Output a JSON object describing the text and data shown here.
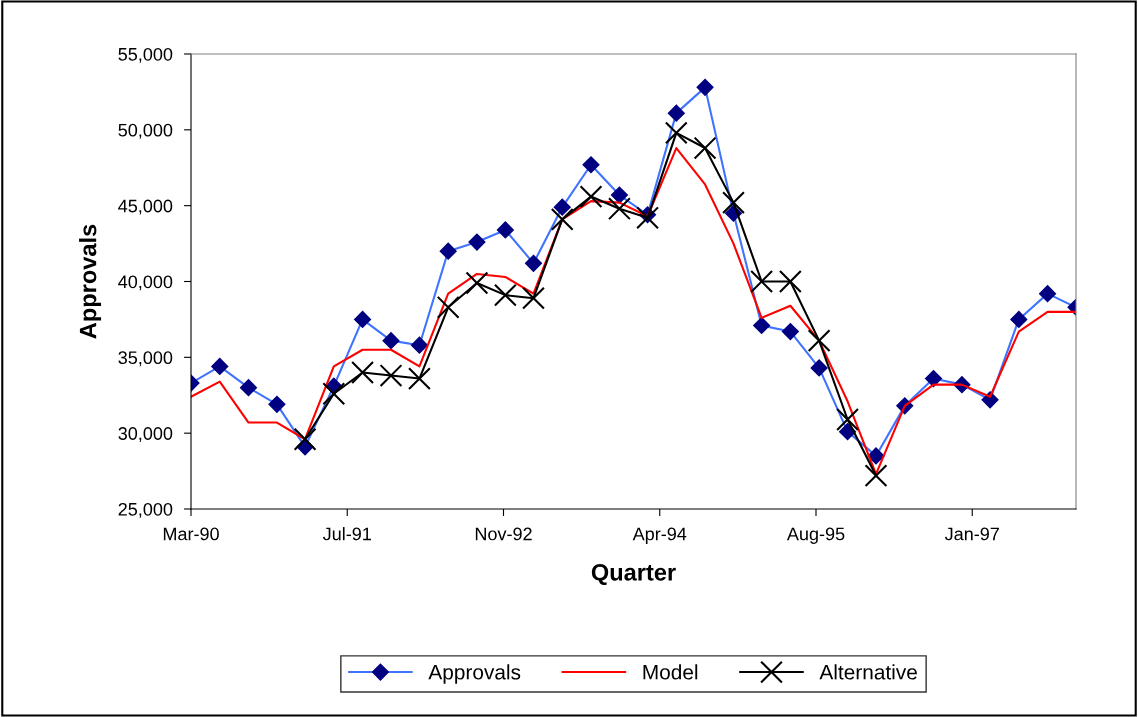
{
  "chart_data": {
    "type": "line",
    "xlabel": "Quarter",
    "ylabel": "Approvals",
    "x": [
      "1990-03-01",
      "1990-06-01",
      "1990-09-01",
      "1990-12-01",
      "1991-03-01",
      "1991-06-01",
      "1991-09-01",
      "1991-12-01",
      "1992-03-01",
      "1992-06-01",
      "1992-09-01",
      "1992-12-01",
      "1993-03-01",
      "1993-06-01",
      "1993-09-01",
      "1993-12-01",
      "1994-03-01",
      "1994-06-01",
      "1994-09-01",
      "1994-12-01",
      "1995-03-01",
      "1995-06-01",
      "1995-09-01",
      "1995-12-01",
      "1996-03-01",
      "1996-06-01",
      "1996-09-01",
      "1996-12-01",
      "1997-03-01",
      "1997-06-01",
      "1997-09-01",
      "1997-12-01"
    ],
    "series": [
      {
        "name": "Approvals",
        "color": "#3f73ff",
        "marker": "diamond",
        "values": [
          33300,
          34400,
          33000,
          31900,
          29100,
          33100,
          37500,
          36100,
          35800,
          42000,
          42600,
          43400,
          41200,
          44900,
          47700,
          45700,
          44400,
          51100,
          52800,
          44500,
          37100,
          36700,
          34300,
          30100,
          28500,
          31800,
          33600,
          33200,
          32200,
          37500,
          39200,
          38300
        ]
      },
      {
        "name": "Model",
        "color": "#ff0000",
        "marker": "none",
        "values": [
          32400,
          33400,
          30700,
          30700,
          29600,
          34400,
          35500,
          35500,
          34400,
          39200,
          40500,
          40300,
          39200,
          44100,
          45300,
          45200,
          44300,
          48800,
          46400,
          42500,
          37600,
          38400,
          36100,
          32100,
          27300,
          31800,
          33200,
          33200,
          32400,
          36700,
          38000,
          38000
        ]
      },
      {
        "name": "Alternative",
        "color": "#000000",
        "marker": "cross",
        "values": [
          null,
          null,
          null,
          null,
          29600,
          32600,
          34000,
          33800,
          33600,
          38300,
          39900,
          39100,
          38900,
          44100,
          45600,
          44800,
          44200,
          49800,
          48800,
          45200,
          40000,
          40000,
          36100,
          30900,
          27200,
          null,
          null,
          null,
          null,
          null,
          null,
          null
        ]
      }
    ],
    "xlim": [
      "1990-03-01",
      "1997-12-01"
    ],
    "xticks": [
      {
        "value": "1990-03-01",
        "label": "Mar-90"
      },
      {
        "value": "1991-07-14",
        "label": "Jul-91"
      },
      {
        "value": "1992-11-25",
        "label": "Nov-92"
      },
      {
        "value": "1994-04-09",
        "label": "Apr-94"
      },
      {
        "value": "1995-08-22",
        "label": "Aug-95"
      },
      {
        "value": "1997-01-03",
        "label": "Jan-97"
      }
    ],
    "ylim": [
      25000,
      55000
    ],
    "yticks": [
      {
        "value": 25000,
        "label": "25,000"
      },
      {
        "value": 30000,
        "label": "30,000"
      },
      {
        "value": 35000,
        "label": "35,000"
      },
      {
        "value": 40000,
        "label": "40,000"
      },
      {
        "value": 45000,
        "label": "45,000"
      },
      {
        "value": 50000,
        "label": "50,000"
      },
      {
        "value": 55000,
        "label": "55,000"
      }
    ],
    "grid": false,
    "legend": "bottom",
    "line_style": "solid"
  }
}
